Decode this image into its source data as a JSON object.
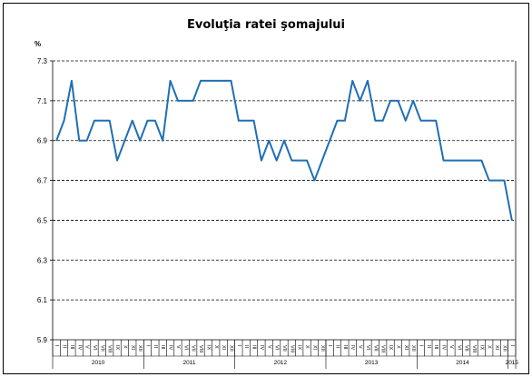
{
  "chart_data": {
    "type": "line",
    "title": "Evoluţia ratei şomajului",
    "ylabel": "%",
    "xlabel": "",
    "ylim": [
      5.9,
      7.3
    ],
    "yticks": [
      "7.3",
      "7.1",
      "6.9",
      "6.7",
      "6.5",
      "6.3",
      "6.1",
      "5.9"
    ],
    "grid": true,
    "legend": "none",
    "line_color": "#1f6fb5",
    "years": [
      {
        "label": "2010",
        "start": 0,
        "count": 12
      },
      {
        "label": "2011",
        "start": 12,
        "count": 12
      },
      {
        "label": "2012",
        "start": 24,
        "count": 12
      },
      {
        "label": "2013",
        "start": 36,
        "count": 12
      },
      {
        "label": "2014",
        "start": 48,
        "count": 12
      },
      {
        "label": "2015",
        "start": 60,
        "count": 1
      }
    ],
    "categories": [
      "I",
      "II",
      "III",
      "IV",
      "V",
      "VI",
      "VII",
      "VIII",
      "IX",
      "X",
      "XI",
      "XII",
      "I",
      "II",
      "III",
      "IV",
      "V",
      "VI",
      "VII",
      "VIII",
      "IX",
      "X",
      "XI",
      "XII",
      "I",
      "II",
      "III",
      "IV",
      "V",
      "VI",
      "VII",
      "VIII",
      "IX",
      "X",
      "XI",
      "XII",
      "I",
      "II",
      "III",
      "IV",
      "V",
      "VI",
      "VII",
      "VIII",
      "IX",
      "X",
      "XI",
      "XII",
      "I",
      "II",
      "III",
      "IV",
      "V",
      "VI",
      "VII",
      "VIII",
      "IX",
      "X",
      "XI",
      "XII",
      "I"
    ],
    "values": [
      6.9,
      7.0,
      7.2,
      6.9,
      6.9,
      7.0,
      7.0,
      7.0,
      6.8,
      6.9,
      7.0,
      6.9,
      7.0,
      7.0,
      6.9,
      7.2,
      7.1,
      7.1,
      7.1,
      7.2,
      7.2,
      7.2,
      7.2,
      7.2,
      7.0,
      7.0,
      7.0,
      6.8,
      6.9,
      6.8,
      6.9,
      6.8,
      6.8,
      6.8,
      6.7,
      6.8,
      6.9,
      7.0,
      7.0,
      7.2,
      7.1,
      7.2,
      7.0,
      7.0,
      7.1,
      7.1,
      7.0,
      7.1,
      7.0,
      7.0,
      7.0,
      6.8,
      6.8,
      6.8,
      6.8,
      6.8,
      6.8,
      6.7,
      6.7,
      6.7,
      6.5
    ]
  }
}
